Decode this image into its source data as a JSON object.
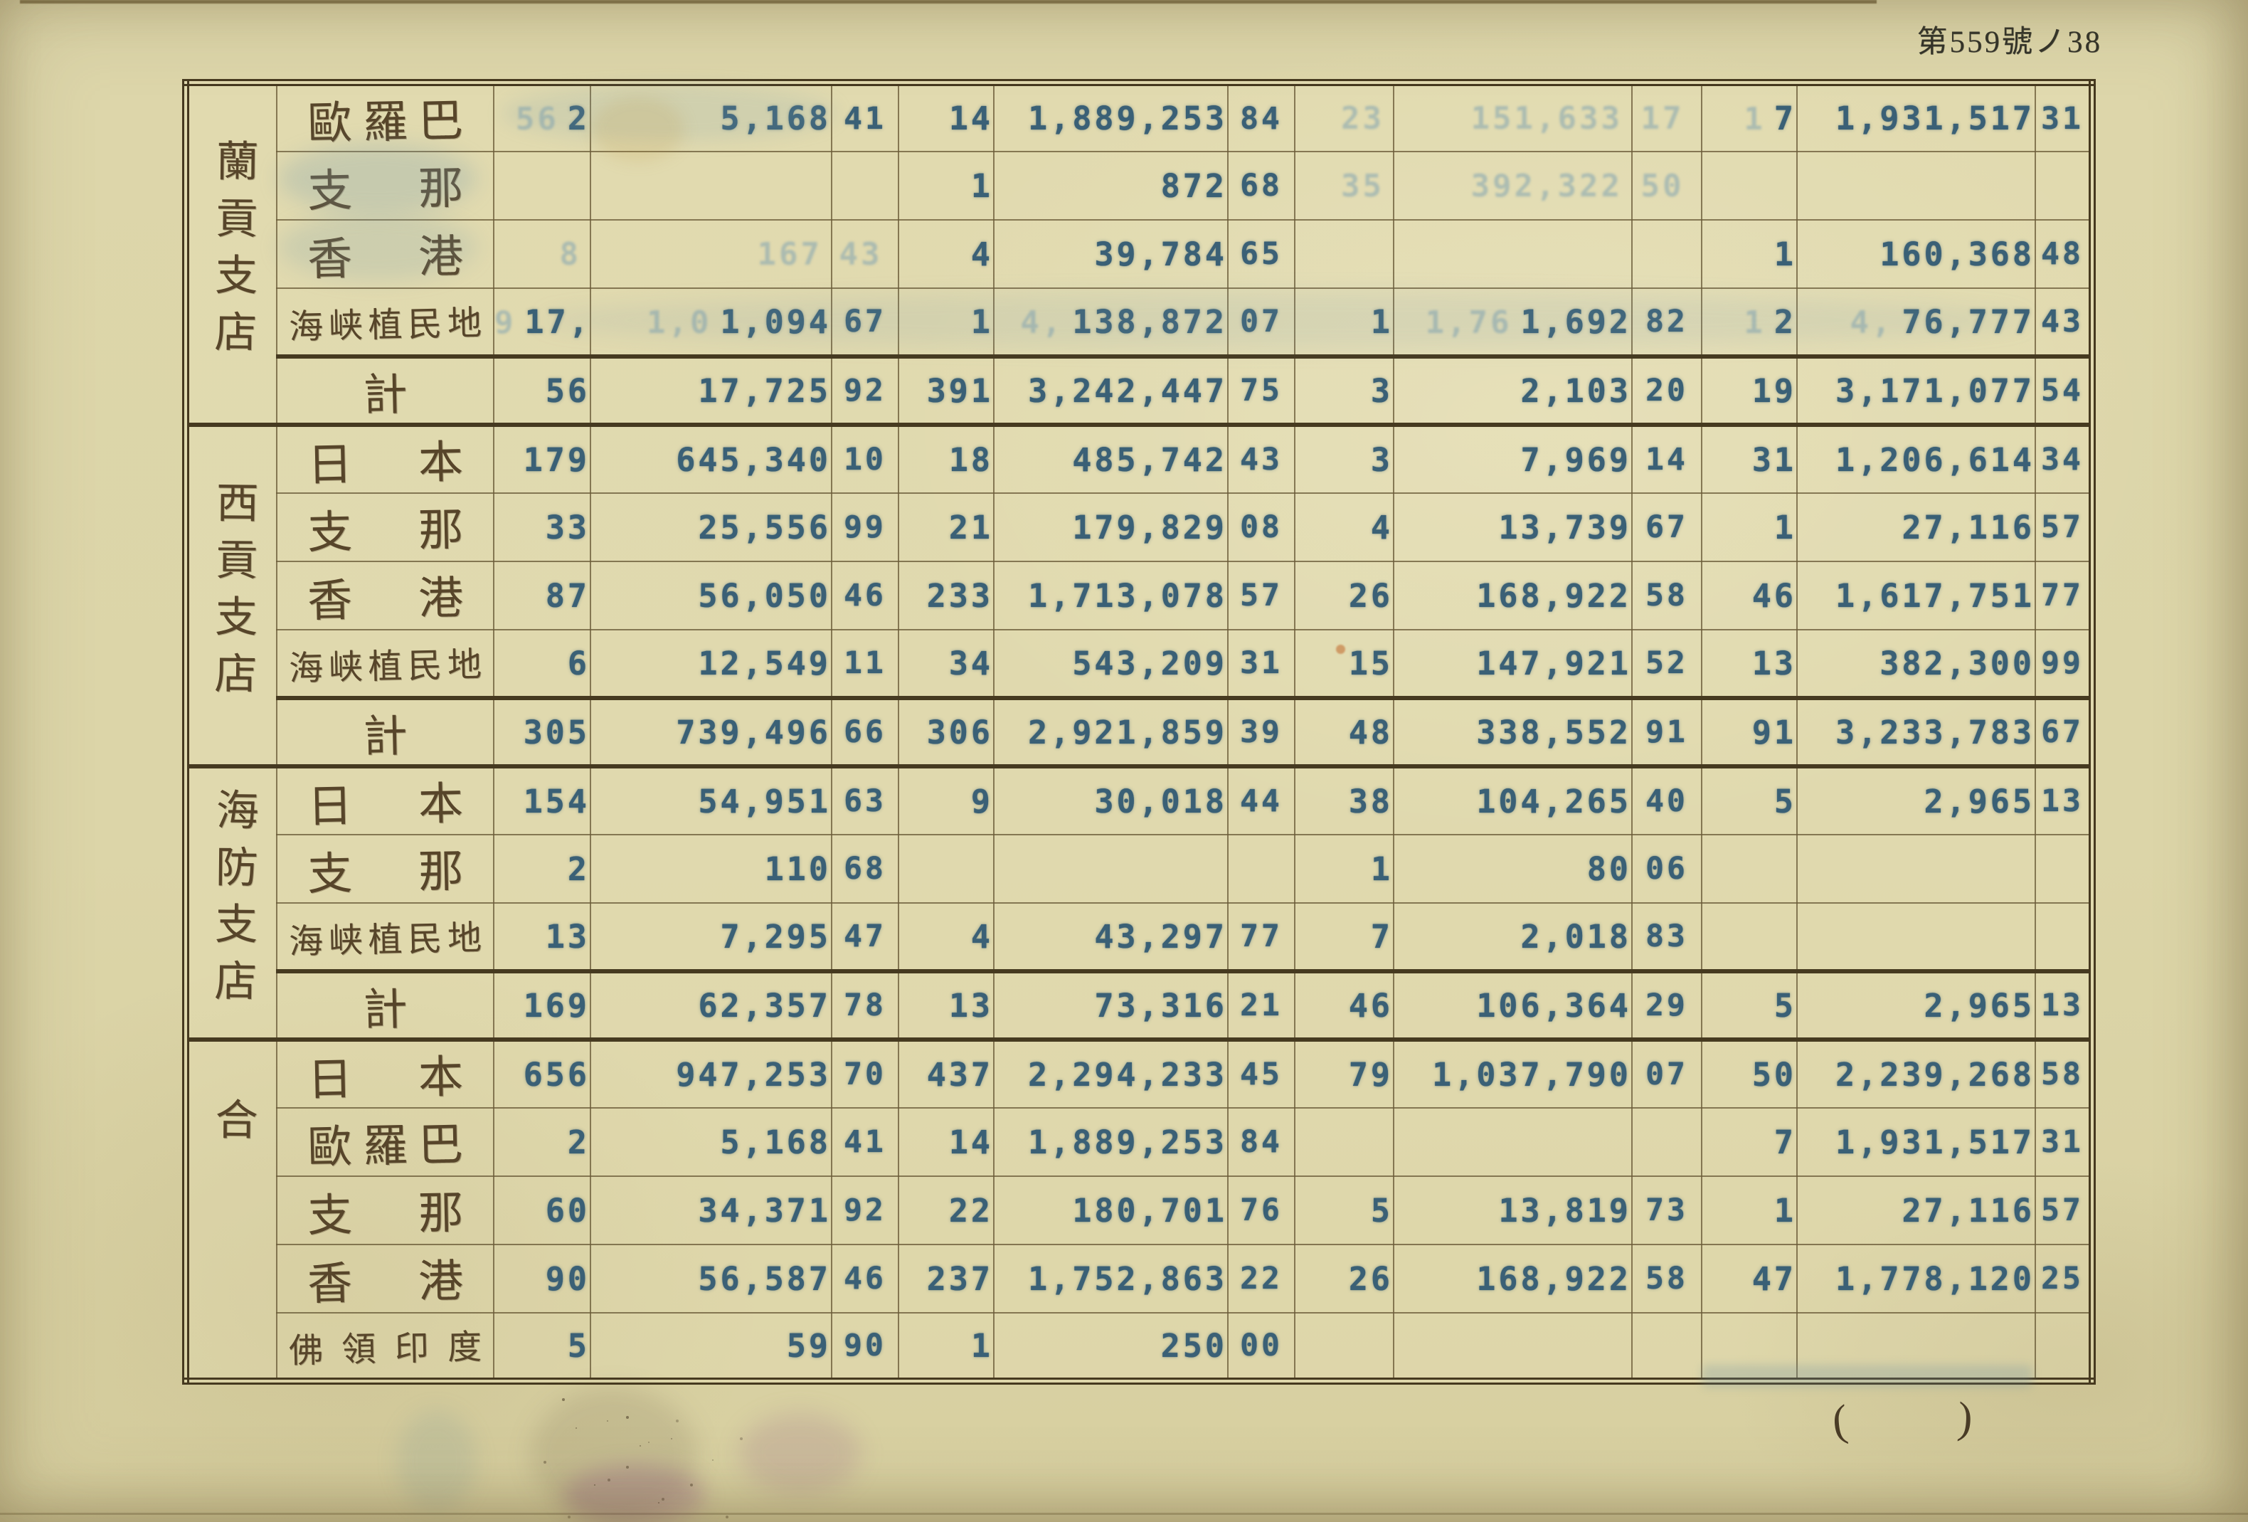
{
  "page": {
    "header_number": "第559號ノ38",
    "footer_parens": [
      "(",
      ")"
    ]
  },
  "table": {
    "column_kinds": [
      "count",
      "amount",
      "cents"
    ],
    "groups": [
      {
        "branch": "蘭貢支店",
        "rows": [
          {
            "dest": "歐羅巴",
            "cells": [
              {
                "gc": "56",
                "c": "2",
                "a": "5,168",
                "f": "41"
              },
              {
                "c": "14",
                "a": "1,889,253",
                "f": "84"
              },
              {
                "gc": "23",
                "ga": "151,633",
                "gf": "17"
              },
              {
                "gc": "1",
                "c": "7",
                "a": "1,931,517",
                "f": "31"
              }
            ]
          },
          {
            "dest": "支那",
            "cells": [
              {},
              {
                "c": "1",
                "a": "872",
                "f": "68"
              },
              {
                "gc": "35",
                "ga": "392,322",
                "gf": "50"
              },
              {}
            ]
          },
          {
            "dest": "香港",
            "cells": [
              {
                "gc": "8",
                "ga": "167",
                "gf": "43"
              },
              {
                "c": "4",
                "a": "39,784",
                "f": "65"
              },
              {},
              {
                "c": "1",
                "a": "160,368",
                "f": "48"
              }
            ]
          },
          {
            "dest": "海峡植民地",
            "cells": [
              {
                "gc": "9",
                "c": "17,",
                "gp": "1,0",
                "a": "1,094",
                "f": "67"
              },
              {
                "c": "1",
                "gp": "4,",
                "a": "138,872",
                "f": "07"
              },
              {
                "c": "1",
                "gp": "1,76",
                "a": "1,692",
                "f": "82"
              },
              {
                "gc": "1",
                "c": "2",
                "gp": "4,",
                "a": "76,777",
                "f": "43"
              }
            ]
          },
          {
            "dest": "計",
            "total": true,
            "cells": [
              {
                "c": "56",
                "a": "17,725",
                "f": "92"
              },
              {
                "c": "391",
                "a": "3,242,447",
                "f": "75"
              },
              {
                "c": "3",
                "a": "2,103",
                "f": "20"
              },
              {
                "c": "19",
                "a": "3,171,077",
                "f": "54"
              }
            ]
          }
        ]
      },
      {
        "branch": "西貢支店",
        "rows": [
          {
            "dest": "日本",
            "cells": [
              {
                "c": "179",
                "a": "645,340",
                "f": "10"
              },
              {
                "c": "18",
                "a": "485,742",
                "f": "43"
              },
              {
                "c": "3",
                "a": "7,969",
                "f": "14"
              },
              {
                "c": "31",
                "a": "1,206,614",
                "f": "34"
              }
            ]
          },
          {
            "dest": "支那",
            "cells": [
              {
                "c": "33",
                "a": "25,556",
                "f": "99"
              },
              {
                "c": "21",
                "a": "179,829",
                "f": "08"
              },
              {
                "c": "4",
                "a": "13,739",
                "f": "67"
              },
              {
                "c": "1",
                "a": "27,116",
                "f": "57"
              }
            ]
          },
          {
            "dest": "香港",
            "cells": [
              {
                "c": "87",
                "a": "56,050",
                "f": "46"
              },
              {
                "c": "233",
                "a": "1,713,078",
                "f": "57"
              },
              {
                "c": "26",
                "a": "168,922",
                "f": "58"
              },
              {
                "c": "46",
                "a": "1,617,751",
                "f": "77"
              }
            ]
          },
          {
            "dest": "海峡植民地",
            "cells": [
              {
                "c": "6",
                "a": "12,549",
                "f": "11"
              },
              {
                "c": "34",
                "a": "543,209",
                "f": "31"
              },
              {
                "c": "15",
                "a": "147,921",
                "f": "52"
              },
              {
                "c": "13",
                "a": "382,300",
                "f": "99"
              }
            ]
          },
          {
            "dest": "計",
            "total": true,
            "cells": [
              {
                "c": "305",
                "a": "739,496",
                "f": "66"
              },
              {
                "c": "306",
                "a": "2,921,859",
                "f": "39"
              },
              {
                "c": "48",
                "a": "338,552",
                "f": "91"
              },
              {
                "c": "91",
                "a": "3,233,783",
                "f": "67"
              }
            ]
          }
        ]
      },
      {
        "branch": "海防支店",
        "rows": [
          {
            "dest": "日本",
            "cells": [
              {
                "c": "154",
                "a": "54,951",
                "f": "63"
              },
              {
                "c": "9",
                "a": "30,018",
                "f": "44"
              },
              {
                "c": "38",
                "a": "104,265",
                "f": "40"
              },
              {
                "c": "5",
                "a": "2,965",
                "f": "13"
              }
            ]
          },
          {
            "dest": "支那",
            "cells": [
              {
                "c": "2",
                "a": "110",
                "f": "68"
              },
              {},
              {
                "c": "1",
                "a": "80",
                "f": "06"
              },
              {}
            ]
          },
          {
            "dest": "海峡植民地",
            "cells": [
              {
                "c": "13",
                "a": "7,295",
                "f": "47"
              },
              {
                "c": "4",
                "a": "43,297",
                "f": "77"
              },
              {
                "c": "7",
                "a": "2,018",
                "f": "83"
              },
              {}
            ]
          },
          {
            "dest": "計",
            "total": true,
            "cells": [
              {
                "c": "169",
                "a": "62,357",
                "f": "78"
              },
              {
                "c": "13",
                "a": "73,316",
                "f": "21"
              },
              {
                "c": "46",
                "a": "106,364",
                "f": "29"
              },
              {
                "c": "5",
                "a": "2,965",
                "f": "13"
              }
            ]
          }
        ]
      },
      {
        "branch": "合",
        "rows": [
          {
            "dest": "日本",
            "cells": [
              {
                "c": "656",
                "a": "947,253",
                "f": "70"
              },
              {
                "c": "437",
                "a": "2,294,233",
                "f": "45"
              },
              {
                "c": "79",
                "a": "1,037,790",
                "f": "07"
              },
              {
                "c": "50",
                "a": "2,239,268",
                "f": "58"
              }
            ]
          },
          {
            "dest": "歐羅巴",
            "cells": [
              {
                "c": "2",
                "a": "5,168",
                "f": "41"
              },
              {
                "c": "14",
                "a": "1,889,253",
                "f": "84"
              },
              {},
              {
                "c": "7",
                "a": "1,931,517",
                "f": "31"
              }
            ]
          },
          {
            "dest": "支那",
            "cells": [
              {
                "c": "60",
                "a": "34,371",
                "f": "92"
              },
              {
                "c": "22",
                "a": "180,701",
                "f": "76"
              },
              {
                "c": "5",
                "a": "13,819",
                "f": "73"
              },
              {
                "c": "1",
                "a": "27,116",
                "f": "57"
              }
            ]
          },
          {
            "dest": "香港",
            "cells": [
              {
                "c": "90",
                "a": "56,587",
                "f": "46"
              },
              {
                "c": "237",
                "a": "1,752,863",
                "f": "22"
              },
              {
                "c": "26",
                "a": "168,922",
                "f": "58"
              },
              {
                "c": "47",
                "a": "1,778,120",
                "f": "25"
              }
            ]
          },
          {
            "dest": "佛領印度",
            "cells": [
              {
                "c": "5",
                "a": "59",
                "f": "90"
              },
              {
                "c": "1",
                "a": "250",
                "f": "00"
              },
              {},
              {}
            ]
          }
        ]
      }
    ]
  }
}
